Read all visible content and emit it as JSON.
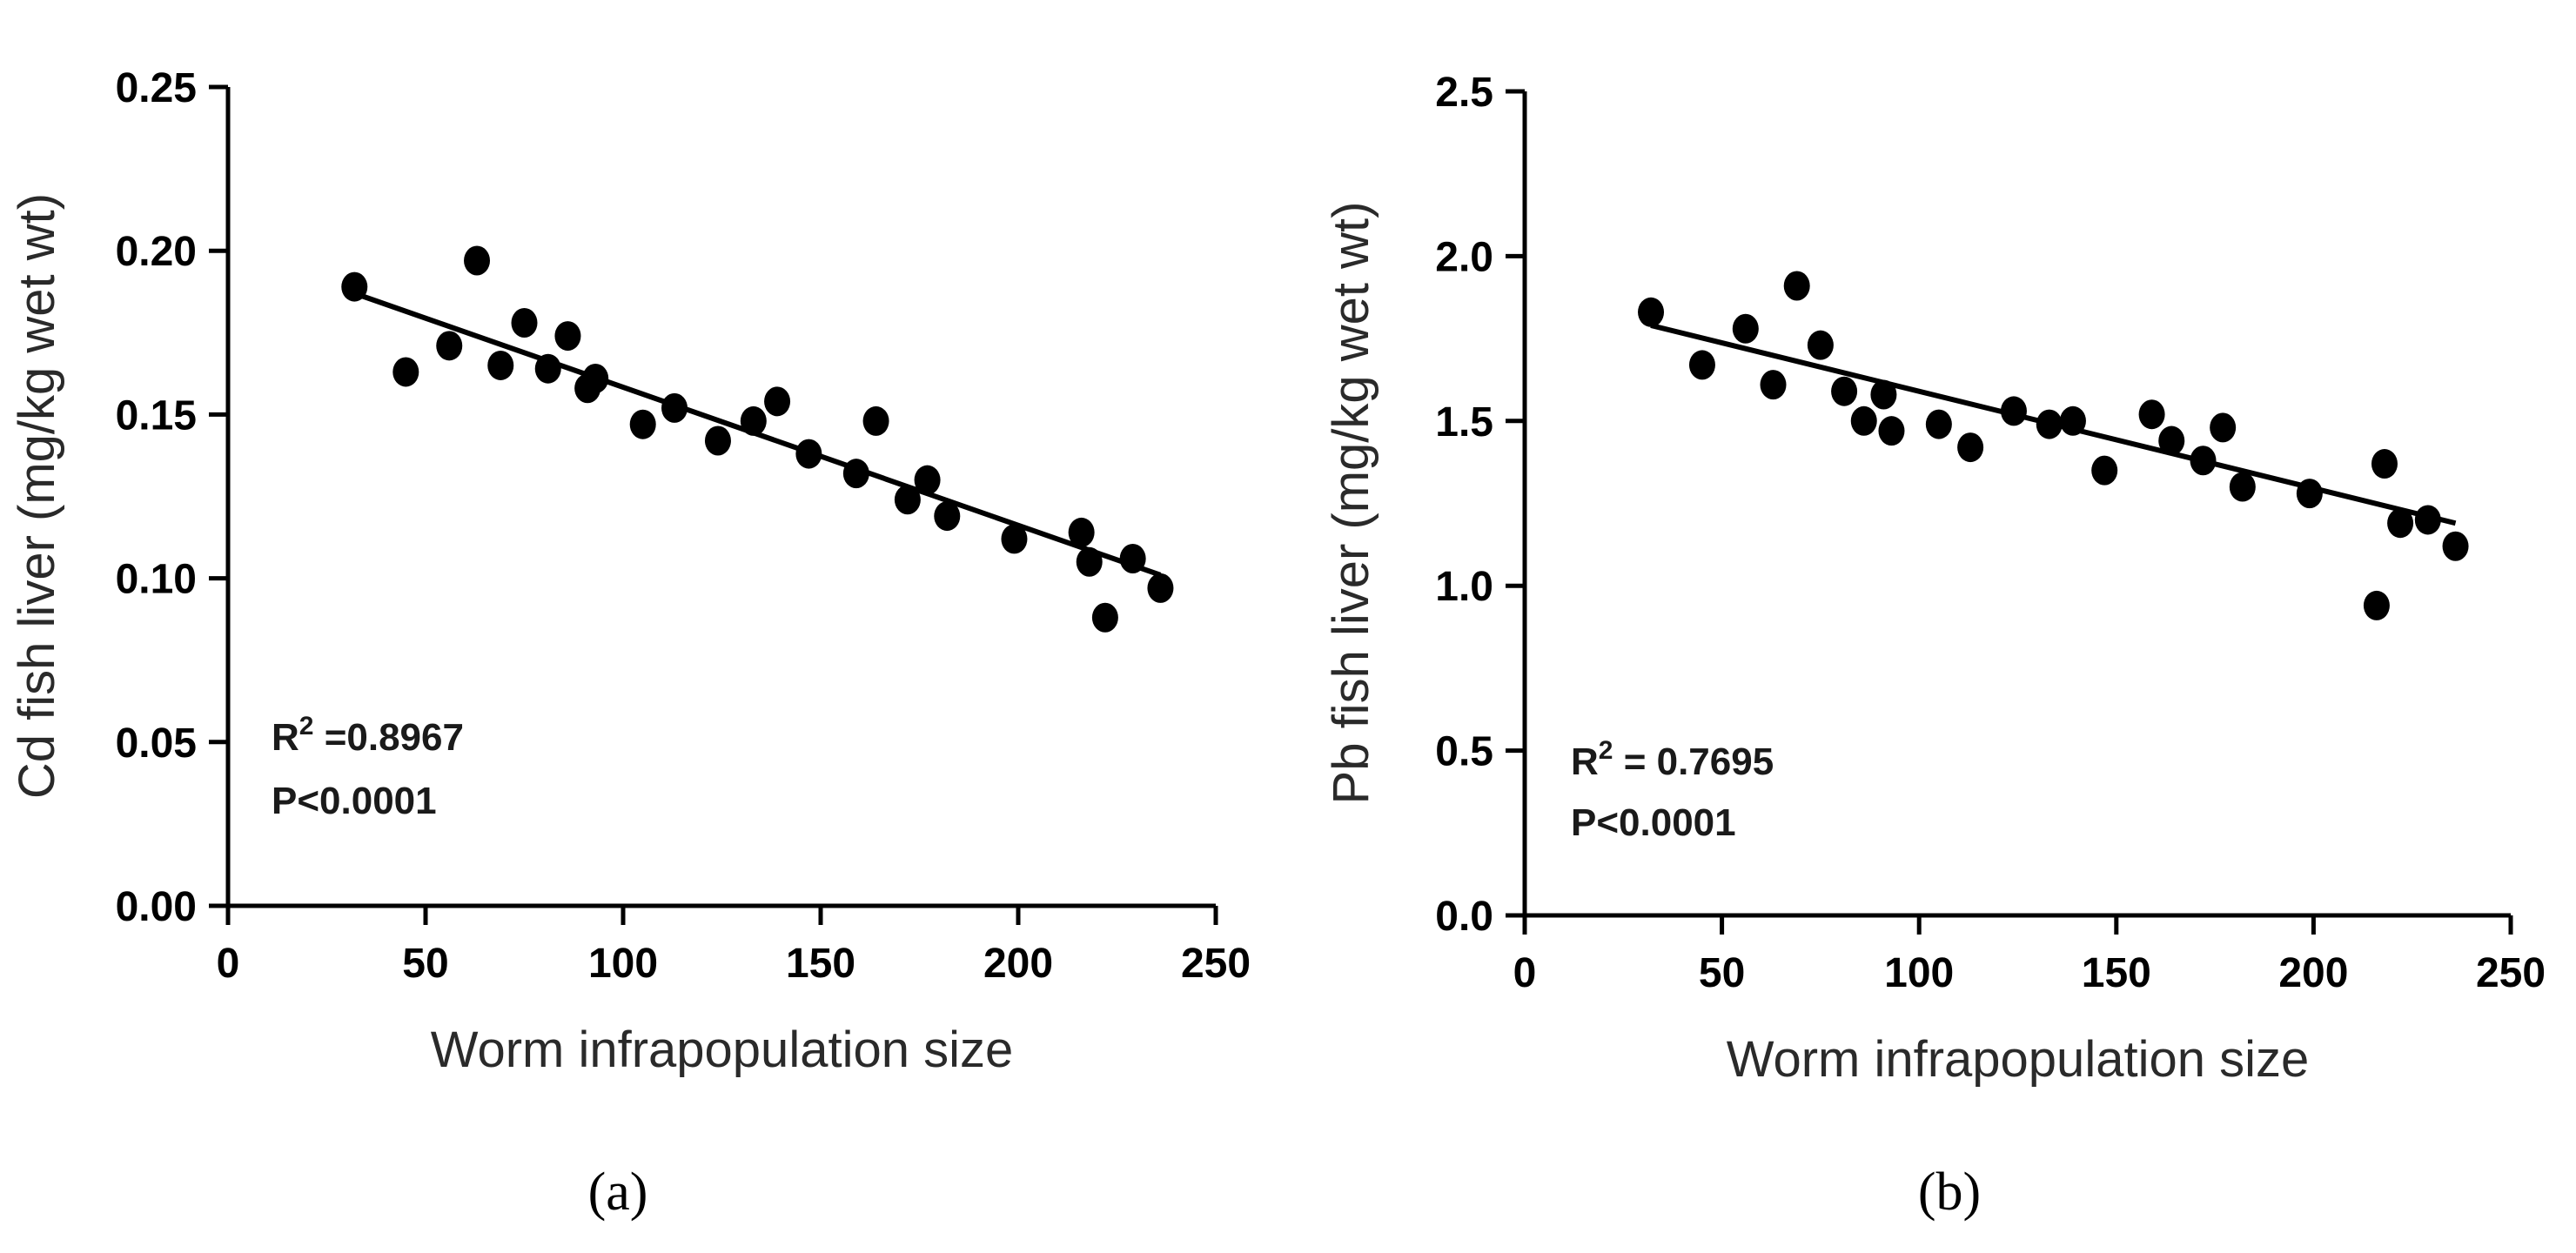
{
  "chart_data": [
    {
      "type": "scatter",
      "panel_label": "(a)",
      "xlabel": "Worm infrapopulation size",
      "ylabel": "Cd fish liver (mg/kg wet wt)",
      "xlim": [
        0,
        250
      ],
      "ylim": [
        0,
        0.25
      ],
      "xticks": [
        0,
        50,
        100,
        150,
        200,
        250
      ],
      "yticks": [
        "0.00",
        "0.05",
        "0.10",
        "0.15",
        "0.20",
        "0.25"
      ],
      "points": [
        {
          "x": 32,
          "y": 0.189
        },
        {
          "x": 45,
          "y": 0.163
        },
        {
          "x": 56,
          "y": 0.171
        },
        {
          "x": 63,
          "y": 0.197
        },
        {
          "x": 69,
          "y": 0.165
        },
        {
          "x": 75,
          "y": 0.178
        },
        {
          "x": 81,
          "y": 0.164
        },
        {
          "x": 86,
          "y": 0.174
        },
        {
          "x": 91,
          "y": 0.158
        },
        {
          "x": 93,
          "y": 0.161
        },
        {
          "x": 105,
          "y": 0.147
        },
        {
          "x": 113,
          "y": 0.152
        },
        {
          "x": 124,
          "y": 0.142
        },
        {
          "x": 133,
          "y": 0.148
        },
        {
          "x": 139,
          "y": 0.154
        },
        {
          "x": 147,
          "y": 0.138
        },
        {
          "x": 159,
          "y": 0.132
        },
        {
          "x": 164,
          "y": 0.148
        },
        {
          "x": 172,
          "y": 0.124
        },
        {
          "x": 177,
          "y": 0.13
        },
        {
          "x": 182,
          "y": 0.119
        },
        {
          "x": 199,
          "y": 0.112
        },
        {
          "x": 216,
          "y": 0.114
        },
        {
          "x": 218,
          "y": 0.105
        },
        {
          "x": 222,
          "y": 0.088
        },
        {
          "x": 229,
          "y": 0.106
        },
        {
          "x": 236,
          "y": 0.097
        }
      ],
      "fit_line": {
        "x": [
          32,
          236
        ],
        "y": [
          0.187,
          0.101
        ]
      },
      "annotation": {
        "r2_prefix": "R",
        "r2_sup": "2",
        "r2_value": " =0.8967",
        "p": "P<0.0001"
      }
    },
    {
      "type": "scatter",
      "panel_label": "(b)",
      "xlabel": "Worm infrapopulation size",
      "ylabel": "Pb fish liver (mg/kg wet wt)",
      "xlim": [
        0,
        250
      ],
      "ylim": [
        0,
        2.5
      ],
      "xticks": [
        0,
        50,
        100,
        150,
        200,
        250
      ],
      "yticks": [
        "0.0",
        "0.5",
        "1.0",
        "1.5",
        "2.0",
        "2.5"
      ],
      "points": [
        {
          "x": 32,
          "y": 1.83
        },
        {
          "x": 45,
          "y": 1.67
        },
        {
          "x": 56,
          "y": 1.78
        },
        {
          "x": 63,
          "y": 1.61
        },
        {
          "x": 69,
          "y": 1.91
        },
        {
          "x": 75,
          "y": 1.73
        },
        {
          "x": 81,
          "y": 1.59
        },
        {
          "x": 86,
          "y": 1.5
        },
        {
          "x": 91,
          "y": 1.58
        },
        {
          "x": 93,
          "y": 1.47
        },
        {
          "x": 105,
          "y": 1.49
        },
        {
          "x": 113,
          "y": 1.42
        },
        {
          "x": 124,
          "y": 1.53
        },
        {
          "x": 133,
          "y": 1.49
        },
        {
          "x": 139,
          "y": 1.5
        },
        {
          "x": 147,
          "y": 1.35
        },
        {
          "x": 159,
          "y": 1.52
        },
        {
          "x": 164,
          "y": 1.44
        },
        {
          "x": 172,
          "y": 1.38
        },
        {
          "x": 177,
          "y": 1.48
        },
        {
          "x": 182,
          "y": 1.3
        },
        {
          "x": 199,
          "y": 1.28
        },
        {
          "x": 216,
          "y": 0.94
        },
        {
          "x": 218,
          "y": 1.37
        },
        {
          "x": 222,
          "y": 1.19
        },
        {
          "x": 229,
          "y": 1.2
        },
        {
          "x": 236,
          "y": 1.12
        }
      ],
      "fit_line": {
        "x": [
          32,
          236
        ],
        "y": [
          1.79,
          1.19
        ]
      },
      "annotation": {
        "r2_prefix": "R",
        "r2_sup": "2",
        "r2_value": " = 0.7695",
        "p": "P<0.0001"
      }
    }
  ]
}
